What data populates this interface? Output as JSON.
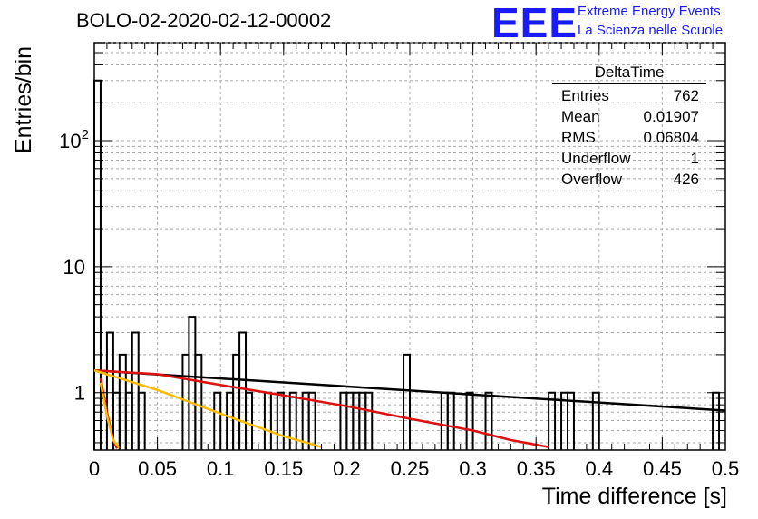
{
  "header": {
    "title": "BOLO-02-2020-02-12-00002",
    "logo_text": "EEE",
    "logo_line1": "Extreme Energy Events",
    "logo_line2": "La Scienza nelle Scuole",
    "logo_color": "#1a1aff"
  },
  "stats": {
    "name": "DeltaTime",
    "rows": [
      {
        "label": "Entries",
        "value": "762"
      },
      {
        "label": "Mean",
        "value": "0.01907"
      },
      {
        "label": "RMS",
        "value": "0.06804"
      },
      {
        "label": "Underflow",
        "value": "1"
      },
      {
        "label": "Overflow",
        "value": "426"
      }
    ]
  },
  "chart_data": {
    "type": "histogram",
    "xlabel": "Time difference [s]",
    "ylabel": "Entries/bin",
    "xlim": [
      0,
      0.5
    ],
    "ylim": [
      0.35,
      600
    ],
    "yscale": "log",
    "grid": true,
    "xticks": [
      "0",
      "0.05",
      "0.1",
      "0.15",
      "0.2",
      "0.25",
      "0.3",
      "0.35",
      "0.4",
      "0.45",
      "0.5"
    ],
    "yticks": [
      {
        "value": 1,
        "label": "1"
      },
      {
        "value": 10,
        "label": "10"
      },
      {
        "value": 100,
        "label": "10^2"
      }
    ],
    "bin_width": 0.005,
    "bins": [
      {
        "x": 0.0,
        "count": 300
      },
      {
        "x": 0.01,
        "count": 3
      },
      {
        "x": 0.015,
        "count": 1
      },
      {
        "x": 0.02,
        "count": 2
      },
      {
        "x": 0.025,
        "count": 1
      },
      {
        "x": 0.03,
        "count": 3
      },
      {
        "x": 0.035,
        "count": 1
      },
      {
        "x": 0.07,
        "count": 2
      },
      {
        "x": 0.075,
        "count": 4
      },
      {
        "x": 0.08,
        "count": 2
      },
      {
        "x": 0.095,
        "count": 1
      },
      {
        "x": 0.105,
        "count": 1
      },
      {
        "x": 0.11,
        "count": 2
      },
      {
        "x": 0.115,
        "count": 3
      },
      {
        "x": 0.12,
        "count": 1
      },
      {
        "x": 0.135,
        "count": 1
      },
      {
        "x": 0.145,
        "count": 1
      },
      {
        "x": 0.155,
        "count": 1
      },
      {
        "x": 0.165,
        "count": 1
      },
      {
        "x": 0.17,
        "count": 1
      },
      {
        "x": 0.195,
        "count": 1
      },
      {
        "x": 0.2,
        "count": 1
      },
      {
        "x": 0.205,
        "count": 1
      },
      {
        "x": 0.21,
        "count": 1
      },
      {
        "x": 0.215,
        "count": 1
      },
      {
        "x": 0.245,
        "count": 2
      },
      {
        "x": 0.275,
        "count": 1
      },
      {
        "x": 0.28,
        "count": 1
      },
      {
        "x": 0.295,
        "count": 1
      },
      {
        "x": 0.31,
        "count": 1
      },
      {
        "x": 0.36,
        "count": 1
      },
      {
        "x": 0.37,
        "count": 1
      },
      {
        "x": 0.375,
        "count": 1
      },
      {
        "x": 0.395,
        "count": 1
      },
      {
        "x": 0.49,
        "count": 1
      }
    ],
    "fit_lines": [
      {
        "color": "#000000",
        "points": [
          [
            0.0,
            1.5
          ],
          [
            0.5,
            0.72
          ]
        ]
      },
      {
        "color": "#dd1111",
        "points": [
          [
            0.0,
            1.5
          ],
          [
            0.05,
            1.4
          ],
          [
            0.1,
            1.15
          ],
          [
            0.15,
            0.95
          ],
          [
            0.2,
            0.78
          ],
          [
            0.25,
            0.62
          ],
          [
            0.3,
            0.5
          ],
          [
            0.33,
            0.42
          ],
          [
            0.36,
            0.37
          ]
        ]
      },
      {
        "color": "#ffbb00",
        "points": [
          [
            0.0,
            1.5
          ],
          [
            0.05,
            1.05
          ],
          [
            0.1,
            0.68
          ],
          [
            0.15,
            0.45
          ],
          [
            0.18,
            0.37
          ]
        ]
      },
      {
        "color": "#dd1111",
        "points": [
          [
            0.005,
            1.3
          ],
          [
            0.01,
            0.7
          ],
          [
            0.015,
            0.42
          ],
          [
            0.018,
            0.36
          ]
        ]
      },
      {
        "color": "#ffbb00",
        "points": [
          [
            0.005,
            1.2
          ],
          [
            0.01,
            0.65
          ],
          [
            0.015,
            0.42
          ],
          [
            0.02,
            0.36
          ]
        ]
      }
    ]
  }
}
